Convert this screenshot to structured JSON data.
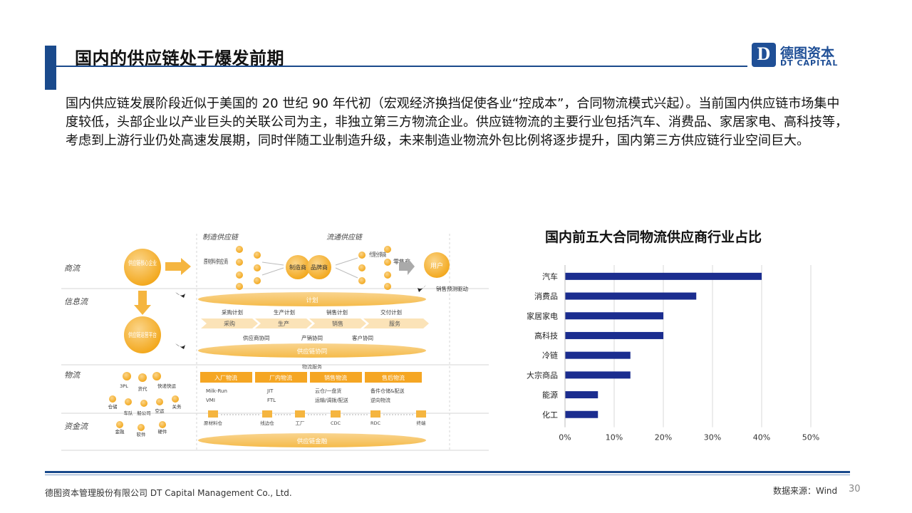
{
  "slide": {
    "title": "国内的供应链处于爆发前期",
    "body": "国内供应链发展阶段近似于美国的 20 世纪 90 年代初（宏观经济换挡促使各业“控成本”，合同物流模式兴起）。当前国内供应链市场集中度较低，头部企业以产业巨头的关联公司为主，非独立第三方物流企业。供应链物流的主要行业包括汽车、消费品、家居家电、高科技等，考虑到上游行业仍处高速发展期，同时伴随工业制造升级，未来制造业物流外包比例将逐步提升，国内第三方供应链行业空间巨大。",
    "page_number": "30"
  },
  "logo": {
    "cn": "德图资本",
    "en": "DT CAPITAL"
  },
  "footer": {
    "company": "德图资本管理股份有限公司  DT Capital Management  Co., Ltd.",
    "source": "数据来源：Wind"
  },
  "diagram": {
    "rows": [
      "商流",
      "信息流",
      "物流",
      "资金流"
    ],
    "sections": [
      "制造供应链",
      "流通供应链"
    ],
    "core": "供应链核心企业",
    "platform": "供应链运营平台",
    "raw_supplier": "原材料供应商",
    "manufacturer": "制造商",
    "brand": "品牌商",
    "distributor": "代理分销商",
    "retailer": "零售商",
    "user": "用户",
    "sales_forecast": "销售预测驱动",
    "plan": "计划",
    "plan_items": [
      "采购计划",
      "生产计划",
      "销售计划",
      "交付计划"
    ],
    "stages": [
      "采购",
      "生产",
      "销售",
      "服务"
    ],
    "collab_items": [
      "供应商协同",
      "产销协同",
      "客户协同"
    ],
    "collab": "供应链协同",
    "logistics_service": "物流服务",
    "log_types": [
      "入厂物流",
      "厂内物流",
      "销售物流",
      "售后物流"
    ],
    "log_details": [
      [
        "Milk-Run",
        "VMI"
      ],
      [
        "JIT",
        "FTL"
      ],
      [
        "云仓/一盘货",
        "运输/调拨/配送"
      ],
      [
        "备件仓储&配送",
        "逆向物流"
      ]
    ],
    "nodes": [
      "原材料仓",
      "线边仓",
      "工厂",
      "CDC",
      "RDC",
      "终端"
    ],
    "finance": "供应链金融",
    "services": [
      "3PL",
      "货代",
      "快递快运",
      "仓储",
      "车队",
      "船公司",
      "空运",
      "关务",
      "金融",
      "软件",
      "硬件"
    ]
  },
  "chart_data": {
    "type": "bar",
    "orientation": "horizontal",
    "title": "国内前五大合同物流供应商行业占比",
    "categories": [
      "汽车",
      "消费品",
      "家居家电",
      "高科技",
      "冷链",
      "大宗商品",
      "能源",
      "化工"
    ],
    "values": [
      40,
      26.7,
      20,
      20,
      13.3,
      13.3,
      6.7,
      6.7
    ],
    "unit": "%",
    "xlim": [
      0,
      50
    ],
    "xticks": [
      "0%",
      "10%",
      "20%",
      "30%",
      "40%",
      "50%"
    ],
    "gridlines": true,
    "color": "#1b2d8f"
  }
}
